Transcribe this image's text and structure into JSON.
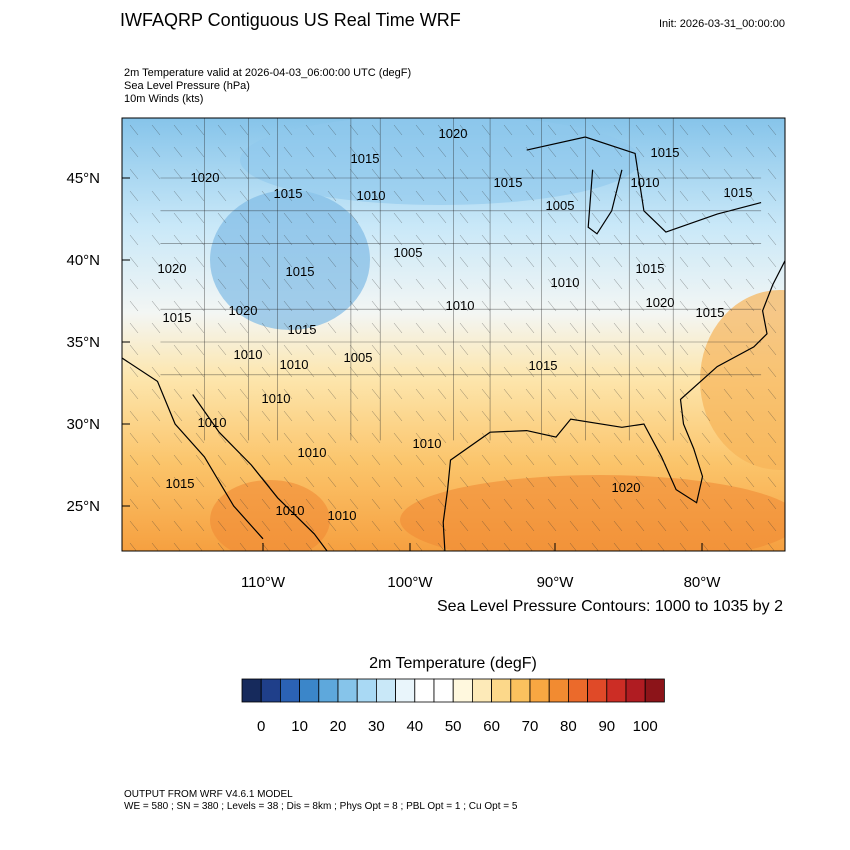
{
  "header": {
    "title": "IWFAQRP Contiguous US Real Time WRF",
    "init": "Init: 2026-03-31_00:00:00",
    "fields": [
      "2m Temperature valid at 2026-04-03_06:00:00 UTC   (degF)",
      "Sea Level Pressure   (hPa)",
      "10m Winds   (kts)"
    ]
  },
  "map": {
    "lat_labels": [
      "45°N",
      "40°N",
      "35°N",
      "30°N",
      "25°N"
    ],
    "lon_labels": [
      "110°W",
      "100°W",
      "90°W",
      "80°W"
    ],
    "contour_labels": [
      1020,
      1015,
      1015,
      1020,
      1015,
      1010,
      1015,
      1010,
      1005,
      1015,
      1005,
      1020,
      1015,
      1010,
      1015,
      1020,
      1010,
      1020,
      1015,
      1015,
      1015,
      1010,
      1010,
      1005,
      1015,
      1010,
      1010,
      1010,
      1010,
      1015,
      1020,
      1010,
      1010
    ],
    "contour_note": "Sea Level Pressure Contours: 1000 to 1035 by 2"
  },
  "colorbar": {
    "title": "2m Temperature  (degF)",
    "colors": [
      "#162a5c",
      "#1f3f8a",
      "#2b62b4",
      "#3b86c9",
      "#5ea8dc",
      "#86c4ea",
      "#a9d9f4",
      "#c9e8f8",
      "#e9f5fb",
      "#ffffff",
      "#ffffff",
      "#fff8de",
      "#fdeab8",
      "#fcd88a",
      "#fbc15e",
      "#f8a742",
      "#f28b31",
      "#eb6a2b",
      "#e04a28",
      "#cc2d25",
      "#b01c22",
      "#8c1419"
    ],
    "labels": [
      0,
      10,
      20,
      30,
      40,
      50,
      60,
      70,
      80,
      90,
      100
    ]
  },
  "footer": {
    "model": "OUTPUT FROM WRF V4.6.1 MODEL",
    "settings": "WE = 580 ; SN = 380 ; Levels = 38 ; Dis = 8km ; Phys Opt = 8 ; PBL Opt = 1 ; Cu Opt = 5"
  }
}
